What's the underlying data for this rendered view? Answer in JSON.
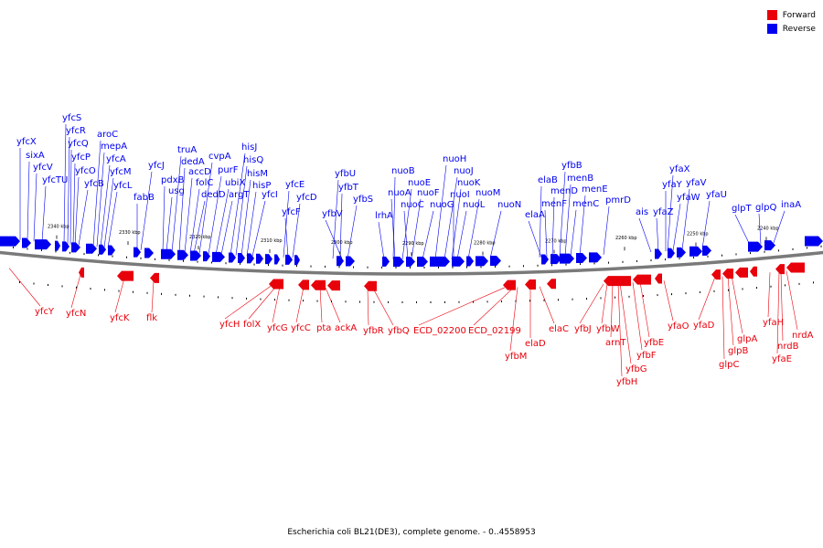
{
  "legend": {
    "forward": {
      "label": "Forward",
      "color": "#e8000b"
    },
    "reverse": {
      "label": "Reverse",
      "color": "#0000f0"
    }
  },
  "caption": "Escherichia coli BL21(DE3), complete genome. - 0..4558953",
  "kbp_ticks": [
    "2340 kbp",
    "2330 kbp",
    "2320 kbp",
    "2310 kbp",
    "2300 kbp",
    "2290 kbp",
    "2280 kbp",
    "2270 kbp",
    "2260 kbp",
    "2250 kbp",
    "2240 kbp"
  ],
  "reverse_labels": [
    "yfcX",
    "sixA",
    "yfcV",
    "yfcTU",
    "yfcS",
    "yfcR",
    "yfcQ",
    "yfcP",
    "yfcO",
    "yfcB",
    "aroC",
    "mepA",
    "yfcA",
    "yfcM",
    "yfcL",
    "yfcJ",
    "fabB",
    "pdxB",
    "usg",
    "truA",
    "dedA",
    "accD",
    "folC",
    "dedD",
    "cvpA",
    "purF",
    "ubiX",
    "argT",
    "hisJ",
    "hisQ",
    "hisM",
    "hisP",
    "yfcI",
    "yfcE",
    "yfcF",
    "yfcD",
    "yfbU",
    "yfbT",
    "yfbV",
    "yfbS",
    "lrhA",
    "nuoB",
    "nuoA",
    "nuoE",
    "nuoC",
    "nuoF",
    "nuoG",
    "nuoH",
    "nuoJ",
    "nuoK",
    "nuoI",
    "nuoL",
    "nuoM",
    "nuoN",
    "elaB",
    "elaA",
    "menF",
    "menD",
    "yfbB",
    "menB",
    "menC",
    "menE",
    "pmrD",
    "ais",
    "yfaZ",
    "yfaX",
    "yfaY",
    "yfaW",
    "yfaV",
    "yfaU",
    "glpT",
    "glpQ",
    "inaA"
  ],
  "forward_labels": [
    "yfcY",
    "yfcN",
    "yfcK",
    "flk",
    "yfcH",
    "folX",
    "yfcG",
    "yfcC",
    "pta",
    "ackA",
    "yfbR",
    "yfbQ",
    "ECD_02200",
    "ECD_02199",
    "elaD",
    "yfbM",
    "elaC",
    "yfbJ",
    "yfbW",
    "arnT",
    "yfbG",
    "yfbH",
    "yfbF",
    "yfbE",
    "yfaO",
    "yfaD",
    "glpA",
    "glpB",
    "glpC",
    "yfaH",
    "nrdB",
    "yfaE",
    "nrdA"
  ]
}
